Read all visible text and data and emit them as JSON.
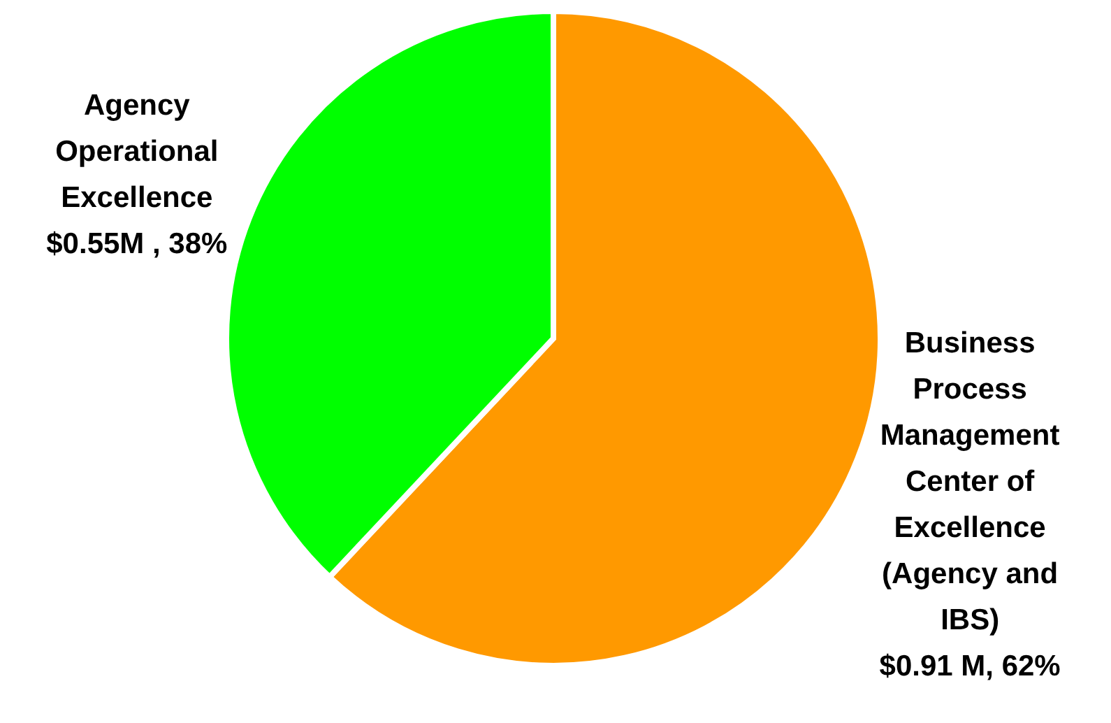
{
  "chart_data": {
    "type": "pie",
    "categories": [
      "Business Process Management Center of Excellence (Agency and IBS)",
      "Agency Operational Excellence"
    ],
    "values": [
      62,
      38
    ],
    "colors": [
      "#ff9900",
      "#00ff00"
    ],
    "value_labels": [
      "$0.91 M, 62%",
      "$0.55M , 38%"
    ],
    "legend": false
  }
}
